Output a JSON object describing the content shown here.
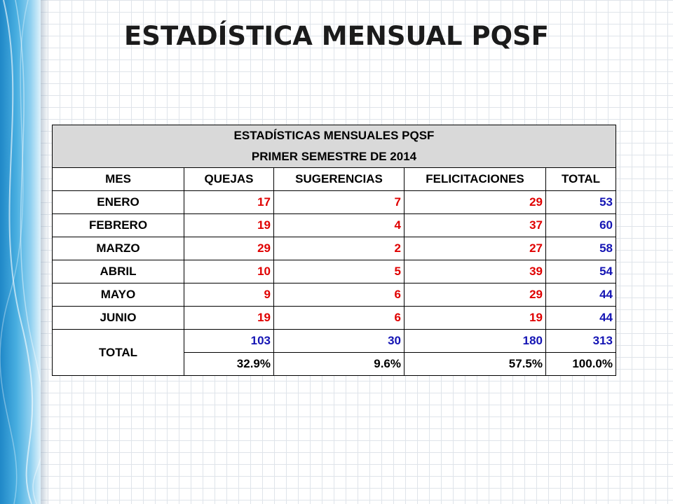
{
  "page_title": "ESTADÍSTICA MENSUAL PQSF",
  "table": {
    "title": "ESTADÍSTICAS MENSUALES PQSF",
    "subtitle": "PRIMER SEMESTRE DE 2014",
    "columns": [
      "MES",
      "QUEJAS",
      "SUGERENCIAS",
      "FELICITACIONES",
      "TOTAL"
    ],
    "rows": [
      {
        "mes": "ENERO",
        "quejas": "17",
        "sugerencias": "7",
        "felicitaciones": "29",
        "total": "53"
      },
      {
        "mes": "FEBRERO",
        "quejas": "19",
        "sugerencias": "4",
        "felicitaciones": "37",
        "total": "60"
      },
      {
        "mes": "MARZO",
        "quejas": "29",
        "sugerencias": "2",
        "felicitaciones": "27",
        "total": "58"
      },
      {
        "mes": "ABRIL",
        "quejas": "10",
        "sugerencias": "5",
        "felicitaciones": "39",
        "total": "54"
      },
      {
        "mes": "MAYO",
        "quejas": "9",
        "sugerencias": "6",
        "felicitaciones": "29",
        "total": "44"
      },
      {
        "mes": "JUNIO",
        "quejas": "19",
        "sugerencias": "6",
        "felicitaciones": "19",
        "total": "44"
      }
    ],
    "total_label": "TOTAL",
    "totals": {
      "quejas": "103",
      "sugerencias": "30",
      "felicitaciones": "180",
      "total": "313"
    },
    "percentages": {
      "quejas": "32.9%",
      "sugerencias": "9.6%",
      "felicitaciones": "57.5%",
      "total": "100.0%"
    }
  },
  "colors": {
    "value_red": "#e00000",
    "value_blue": "#1414b4",
    "header_gray": "#d9d9d9",
    "accent_blue": "#1f87c7"
  }
}
